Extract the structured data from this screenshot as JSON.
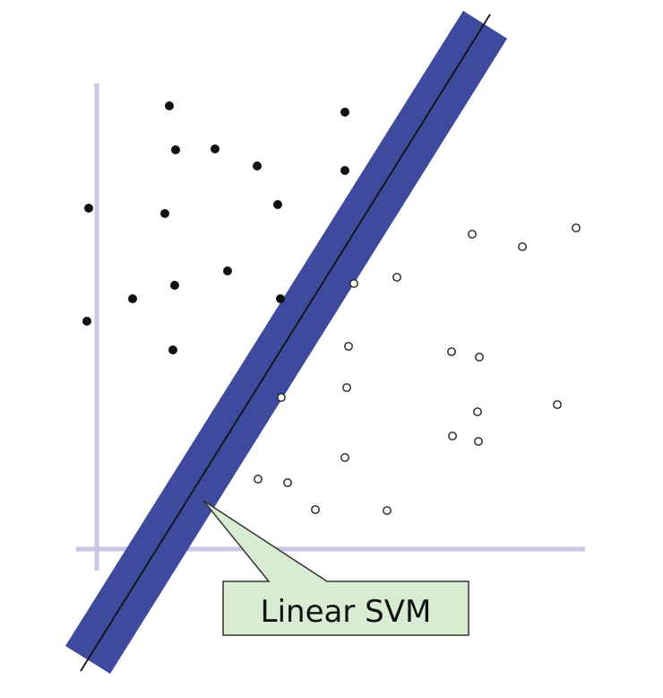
{
  "colors": {
    "axis": "#c9c5e4",
    "margin_band": "#3d4a9e",
    "hyperplane": "#111111",
    "class_a": "#111111",
    "class_b_fill": "#ffffff",
    "class_b_stroke": "#222222",
    "callout_fill": "#d7ecd0",
    "callout_stroke": "#333333"
  },
  "callout": {
    "label": "Linear SVM"
  }
}
